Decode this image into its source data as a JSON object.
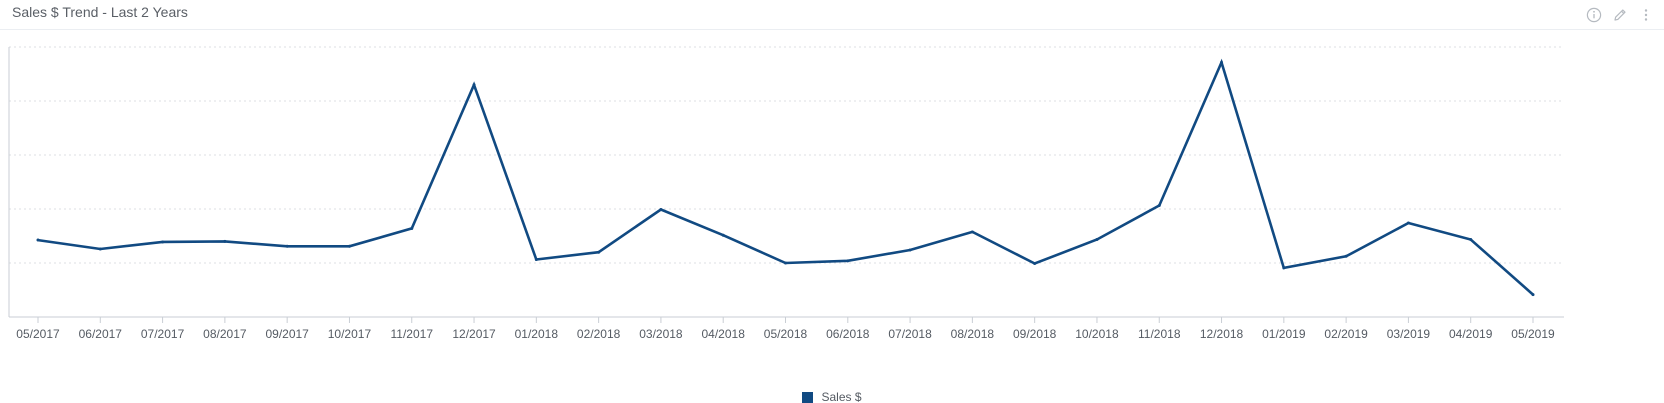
{
  "header": {
    "title": "Sales $ Trend - Last 2 Years",
    "icons": [
      "info-icon",
      "edit-icon",
      "more-options-icon"
    ]
  },
  "colors": {
    "series": "#114a82",
    "grid": "#dcdfe3",
    "axis": "#c9ced4",
    "text": "#555b63",
    "icon": "#b5bac0"
  },
  "chart_data": {
    "type": "line",
    "title": "Sales $ Trend - Last 2 Years",
    "xlabel": "",
    "ylabel": "",
    "y_tick_labels_visible": false,
    "grid": "horizontal-dotted",
    "legend_position": "bottom-center",
    "ylim": [
      0,
      100
    ],
    "categories": [
      "05/2017",
      "06/2017",
      "07/2017",
      "08/2017",
      "09/2017",
      "10/2017",
      "11/2017",
      "12/2017",
      "01/2018",
      "02/2018",
      "03/2018",
      "04/2018",
      "05/2018",
      "06/2018",
      "07/2018",
      "08/2018",
      "09/2018",
      "10/2018",
      "11/2018",
      "12/2018",
      "01/2019",
      "02/2019",
      "03/2019",
      "04/2019",
      "05/2019"
    ],
    "series": [
      {
        "name": "Sales $",
        "color": "#114a82",
        "values": [
          28.5,
          25.2,
          27.8,
          28.0,
          26.2,
          26.2,
          32.8,
          86.0,
          21.3,
          24.0,
          39.8,
          30.3,
          20.0,
          20.8,
          24.8,
          31.5,
          19.8,
          28.7,
          41.3,
          94.3,
          18.2,
          22.5,
          34.8,
          28.7,
          8.3
        ]
      }
    ]
  }
}
